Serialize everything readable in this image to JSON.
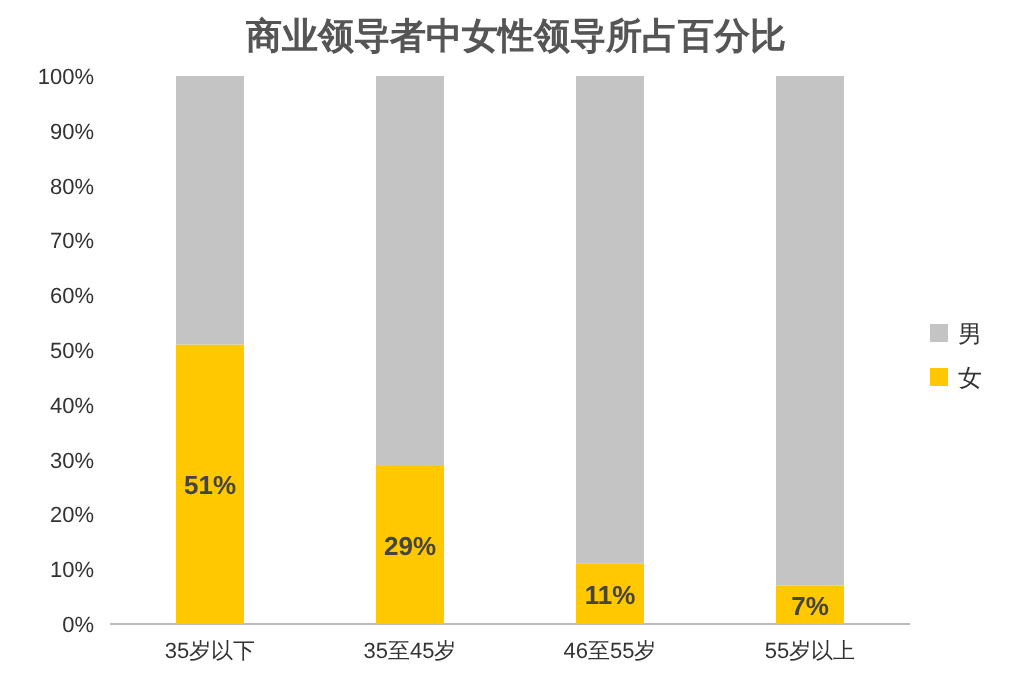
{
  "chart_data": {
    "type": "bar",
    "title": "商业领导者中女性领导所占百分比",
    "stacked": true,
    "categories": [
      "35岁以下",
      "35至45岁",
      "46至55岁",
      "55岁以上"
    ],
    "series": [
      {
        "name": "女",
        "color": "#ffc800",
        "values": [
          51,
          29,
          11,
          7
        ],
        "value_labels": [
          "51%",
          "29%",
          "11%",
          "7%"
        ]
      },
      {
        "name": "男",
        "color": "#c4c4c4",
        "values": [
          49,
          71,
          89,
          93
        ]
      }
    ],
    "ylim": [
      0,
      100
    ],
    "yticks": [
      {
        "value": 0,
        "label": "0%"
      },
      {
        "value": 10,
        "label": "10%"
      },
      {
        "value": 20,
        "label": "20%"
      },
      {
        "value": 30,
        "label": "30%"
      },
      {
        "value": 40,
        "label": "40%"
      },
      {
        "value": 50,
        "label": "50%"
      },
      {
        "value": 60,
        "label": "60%"
      },
      {
        "value": 70,
        "label": "70%"
      },
      {
        "value": 80,
        "label": "80%"
      },
      {
        "value": 90,
        "label": "90%"
      },
      {
        "value": 100,
        "label": "100%"
      }
    ],
    "legend": "right"
  }
}
